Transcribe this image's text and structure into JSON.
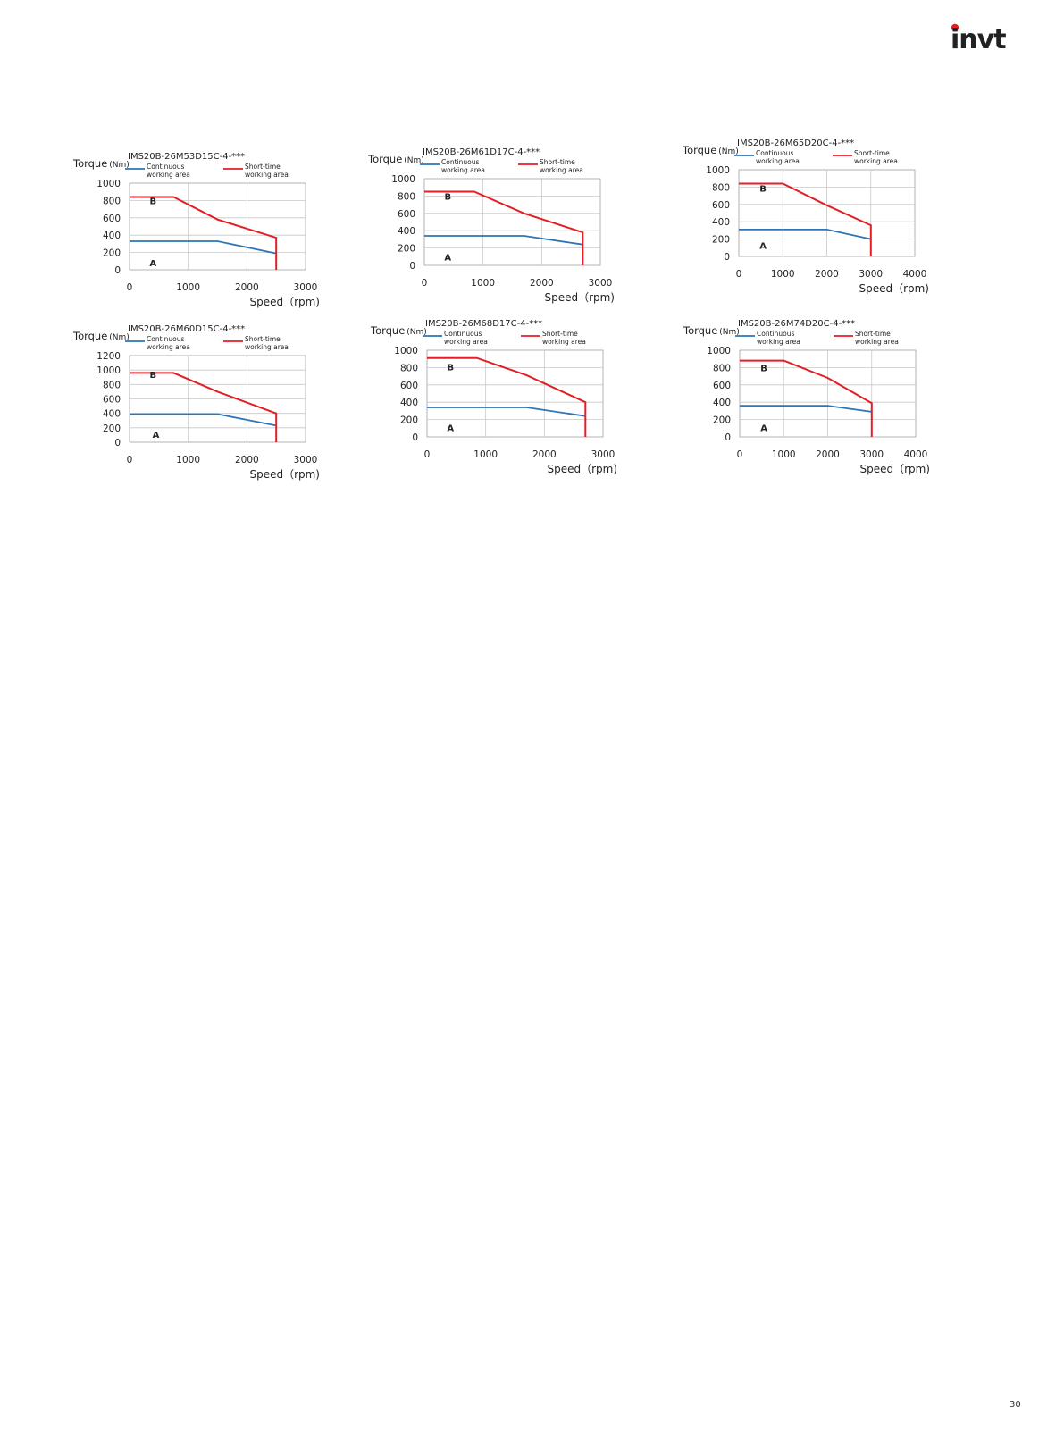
{
  "brand": {
    "logo_text": "invt",
    "logo_color": "#1a2f6b",
    "accent_color": "#e31e24"
  },
  "page_number": "30",
  "legend": {
    "continuous": "Continuous working area",
    "short_time": "Short-time working area"
  },
  "colors": {
    "continuous": "#2e75b6",
    "short_time": "#e31e24",
    "grid": "#c8c8c8"
  },
  "chart_data": [
    {
      "type": "line",
      "title": "IMS20B-26M53D15C-4-***",
      "ylabel": "Torque",
      "yunit": "(Nm)",
      "xlabel": "Speed（rpm)",
      "xlim": [
        0,
        3000
      ],
      "xticks": [
        0,
        1000,
        2000,
        3000
      ],
      "ylim": [
        0,
        1000
      ],
      "yticks": [
        0,
        200,
        400,
        600,
        800,
        1000
      ],
      "area_labels": [
        {
          "text": "B",
          "x": 400,
          "y": 800
        },
        {
          "text": "A",
          "x": 400,
          "y": 80
        }
      ],
      "series": [
        {
          "name": "Continuous working area",
          "key": "continuous",
          "x": [
            0,
            1500,
            2500
          ],
          "y": [
            330,
            330,
            190
          ]
        },
        {
          "name": "Short-time working area",
          "key": "short_time",
          "x": [
            0,
            750,
            1500,
            2500,
            2500
          ],
          "y": [
            840,
            840,
            580,
            370,
            0
          ]
        }
      ]
    },
    {
      "type": "line",
      "title": "IMS20B-26M61D17C-4-***",
      "ylabel": "Torque",
      "yunit": "(Nm)",
      "xlabel": "Speed（rpm)",
      "xlim": [
        0,
        3000
      ],
      "xticks": [
        0,
        1000,
        2000,
        3000
      ],
      "ylim": [
        0,
        1000
      ],
      "yticks": [
        0,
        200,
        400,
        600,
        800,
        1000
      ],
      "area_labels": [
        {
          "text": "B",
          "x": 400,
          "y": 800
        },
        {
          "text": "A",
          "x": 400,
          "y": 100
        }
      ],
      "series": [
        {
          "name": "Continuous working area",
          "key": "continuous",
          "x": [
            0,
            1700,
            2700
          ],
          "y": [
            340,
            340,
            240
          ]
        },
        {
          "name": "Short-time working area",
          "key": "short_time",
          "x": [
            0,
            850,
            1700,
            2700,
            2700
          ],
          "y": [
            850,
            850,
            600,
            380,
            0
          ]
        }
      ]
    },
    {
      "type": "line",
      "title": "IMS20B-26M65D20C-4-***",
      "ylabel": "Torque",
      "yunit": "(Nm)",
      "xlabel": "Speed（rpm)",
      "xlim": [
        0,
        4000
      ],
      "xticks": [
        0,
        1000,
        2000,
        3000,
        4000
      ],
      "ylim": [
        0,
        1000
      ],
      "yticks": [
        0,
        200,
        400,
        600,
        800,
        1000
      ],
      "area_labels": [
        {
          "text": "B",
          "x": 550,
          "y": 790
        },
        {
          "text": "A",
          "x": 550,
          "y": 130
        }
      ],
      "series": [
        {
          "name": "Continuous working area",
          "key": "continuous",
          "x": [
            0,
            2000,
            3000
          ],
          "y": [
            310,
            310,
            200
          ]
        },
        {
          "name": "Short-time working area",
          "key": "short_time",
          "x": [
            0,
            1000,
            2000,
            3000,
            3000
          ],
          "y": [
            840,
            840,
            590,
            360,
            0
          ]
        }
      ]
    },
    {
      "type": "line",
      "title": "IMS20B-26M60D15C-4-***",
      "ylabel": "Torque",
      "yunit": "(Nm)",
      "xlabel": "Speed（rpm)",
      "xlim": [
        0,
        3000
      ],
      "xticks": [
        0,
        1000,
        2000,
        3000
      ],
      "ylim": [
        0,
        1200
      ],
      "yticks": [
        0,
        200,
        400,
        600,
        800,
        1000,
        1200
      ],
      "area_labels": [
        {
          "text": "B",
          "x": 400,
          "y": 940
        },
        {
          "text": "A",
          "x": 450,
          "y": 110
        }
      ],
      "series": [
        {
          "name": "Continuous working area",
          "key": "continuous",
          "x": [
            0,
            1500,
            2500
          ],
          "y": [
            390,
            390,
            230
          ]
        },
        {
          "name": "Short-time working area",
          "key": "short_time",
          "x": [
            0,
            750,
            1500,
            2500,
            2500
          ],
          "y": [
            960,
            960,
            700,
            400,
            0
          ]
        }
      ]
    },
    {
      "type": "line",
      "title": "IMS20B-26M68D17C-4-***",
      "ylabel": "Torque",
      "yunit": "(Nm)",
      "xlabel": "Speed（rpm)",
      "xlim": [
        0,
        3000
      ],
      "xticks": [
        0,
        1000,
        2000,
        3000
      ],
      "ylim": [
        0,
        1000
      ],
      "yticks": [
        0,
        200,
        400,
        600,
        800,
        1000
      ],
      "area_labels": [
        {
          "text": "B",
          "x": 400,
          "y": 810
        },
        {
          "text": "A",
          "x": 400,
          "y": 110
        }
      ],
      "series": [
        {
          "name": "Continuous working area",
          "key": "continuous",
          "x": [
            0,
            1700,
            2700
          ],
          "y": [
            340,
            340,
            240
          ]
        },
        {
          "name": "Short-time working area",
          "key": "short_time",
          "x": [
            0,
            850,
            1700,
            2700,
            2700
          ],
          "y": [
            910,
            910,
            710,
            400,
            0
          ]
        }
      ]
    },
    {
      "type": "line",
      "title": "IMS20B-26M74D20C-4-***",
      "ylabel": "Torque",
      "yunit": "(Nm)",
      "xlabel": "Speed（rpm)",
      "xlim": [
        0,
        4000
      ],
      "xticks": [
        0,
        1000,
        2000,
        3000,
        4000
      ],
      "ylim": [
        0,
        1000
      ],
      "yticks": [
        0,
        200,
        400,
        600,
        800,
        1000
      ],
      "area_labels": [
        {
          "text": "B",
          "x": 550,
          "y": 800
        },
        {
          "text": "A",
          "x": 550,
          "y": 110
        }
      ],
      "series": [
        {
          "name": "Continuous working area",
          "key": "continuous",
          "x": [
            0,
            2000,
            3000
          ],
          "y": [
            360,
            360,
            290
          ]
        },
        {
          "name": "Short-time working area",
          "key": "short_time",
          "x": [
            0,
            1000,
            2000,
            3000,
            3000
          ],
          "y": [
            880,
            880,
            680,
            390,
            0
          ]
        }
      ]
    }
  ]
}
